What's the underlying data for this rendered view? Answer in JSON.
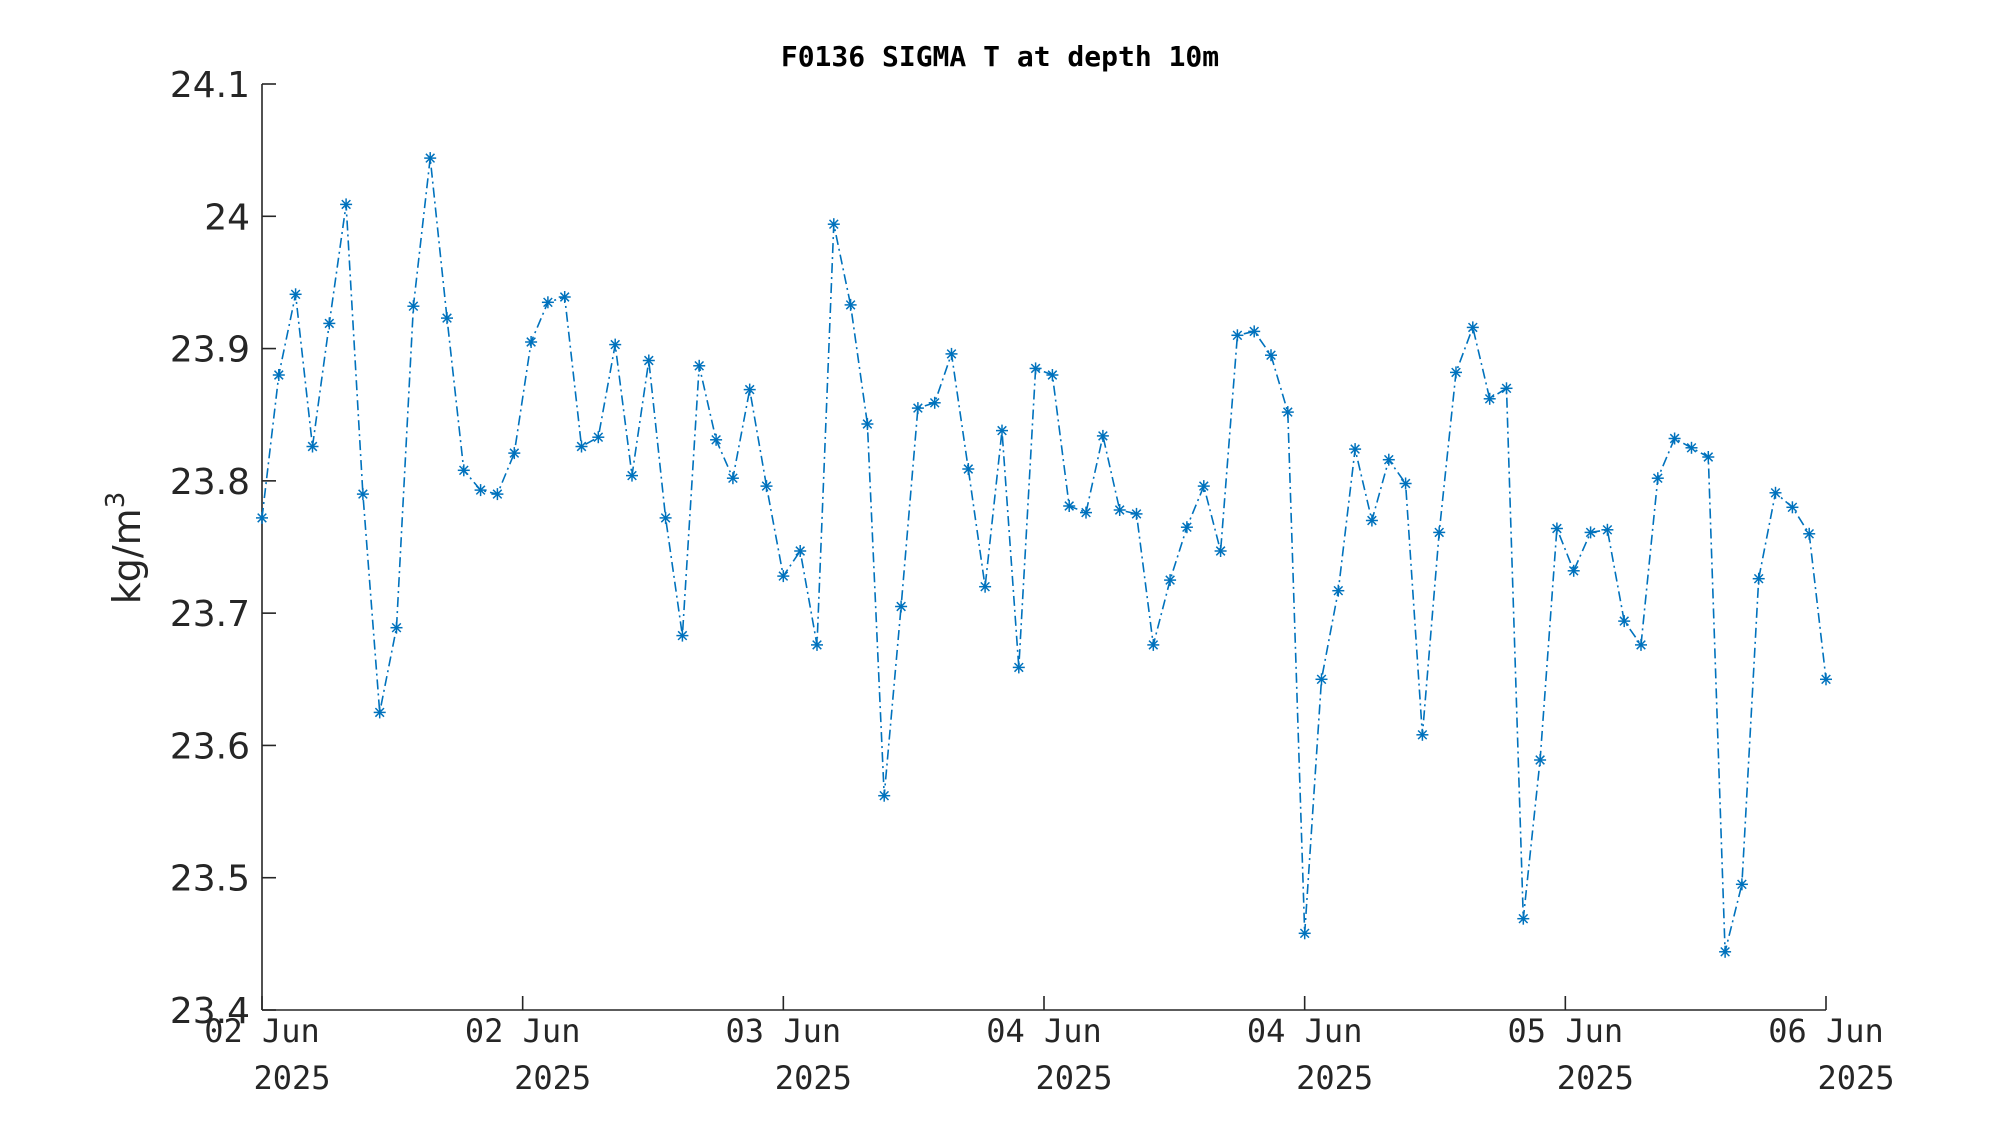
{
  "chart_data": {
    "type": "line",
    "title": "F0136 SIGMA T at depth 10m",
    "xlabel": "",
    "ylabel": "kg/m",
    "ylabel_sup": "3",
    "ylim": [
      23.4,
      24.1
    ],
    "yticks": [
      "23.4",
      "23.5",
      "23.6",
      "23.7",
      "23.8",
      "23.9",
      "24",
      "24.1"
    ],
    "xticks": [
      {
        "day": "02 Jun",
        "year": "2025"
      },
      {
        "day": "02 Jun",
        "year": "2025"
      },
      {
        "day": "03 Jun",
        "year": "2025"
      },
      {
        "day": "04 Jun",
        "year": "2025"
      },
      {
        "day": "04 Jun",
        "year": "2025"
      },
      {
        "day": "05 Jun",
        "year": "2025"
      },
      {
        "day": "06 Jun",
        "year": "2025"
      }
    ],
    "grid": false,
    "line_style": "dash-dot",
    "marker": "asterisk",
    "color": "#0072BD",
    "series": [
      {
        "values": [
          23.772,
          23.88,
          23.941,
          23.826,
          23.919,
          24.009,
          23.79,
          23.625,
          23.689,
          23.932,
          24.044,
          23.923,
          23.808,
          23.793,
          23.79,
          23.821,
          23.905,
          23.935,
          23.939,
          23.826,
          23.833,
          23.903,
          23.804,
          23.891,
          23.772,
          23.683,
          23.887,
          23.831,
          23.802,
          23.869,
          23.796,
          23.728,
          23.747,
          23.676,
          23.994,
          23.933,
          23.843,
          23.562,
          23.705,
          23.855,
          23.859,
          23.896,
          23.809,
          23.72,
          23.838,
          23.659,
          23.885,
          23.88,
          23.781,
          23.776,
          23.834,
          23.778,
          23.775,
          23.676,
          23.725,
          23.765,
          23.796,
          23.747,
          23.91,
          23.913,
          23.895,
          23.852,
          23.458,
          23.65,
          23.717,
          23.824,
          23.77,
          23.816,
          23.798,
          23.608,
          23.761,
          23.882,
          23.916,
          23.862,
          23.87,
          23.469,
          23.589,
          23.764,
          23.732,
          23.761,
          23.763,
          23.694,
          23.676,
          23.802,
          23.832,
          23.825,
          23.818,
          23.444,
          23.495,
          23.726,
          23.791,
          23.78,
          23.76,
          23.65
        ]
      }
    ]
  }
}
